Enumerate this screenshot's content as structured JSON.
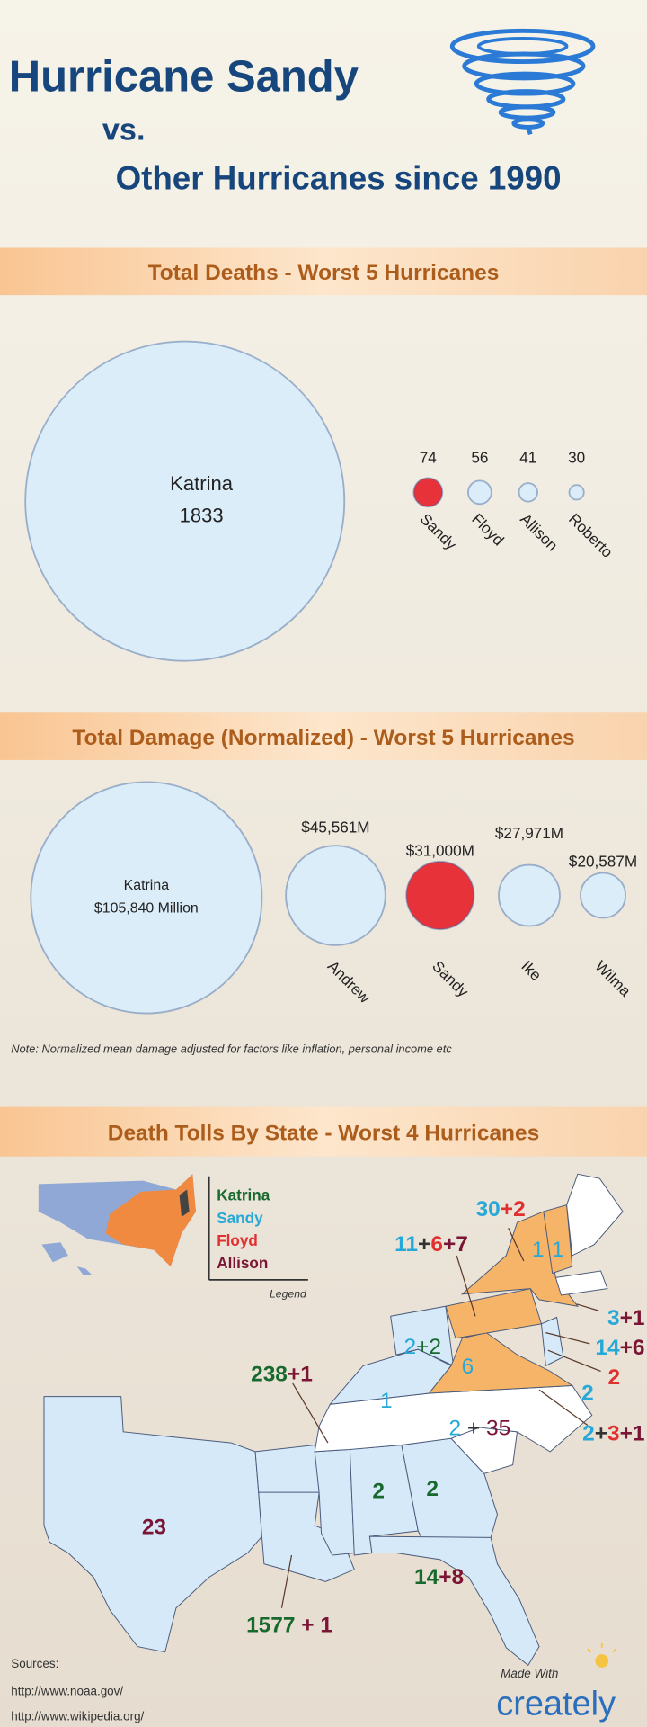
{
  "header": {
    "title": "Hurricane Sandy",
    "vs": "vs.",
    "subtitle": "Other Hurricanes since 1990"
  },
  "chart_data": [
    {
      "type": "bubble",
      "title": "Total Deaths - Worst 5 Hurricanes",
      "categories": [
        "Katrina",
        "Sandy",
        "Floyd",
        "Allison",
        "Roberto"
      ],
      "values": [
        1833,
        74,
        56,
        41,
        30
      ],
      "colors": [
        "#dcedfa",
        "#e8323a",
        "#dcedfa",
        "#dcedfa",
        "#dcedfa"
      ]
    },
    {
      "type": "bubble",
      "title": "Total Damage (Normalized) - Worst 5 Hurricanes",
      "categories": [
        "Katrina",
        "Andrew",
        "Sandy",
        "Ike",
        "Wilma"
      ],
      "values": [
        105840,
        45561,
        31000,
        27971,
        20587
      ],
      "value_labels": [
        "$105,840 Million",
        "$45,561M",
        "$31,000M",
        "$27,971M",
        "$20,587M"
      ],
      "colors": [
        "#dcedfa",
        "#dcedfa",
        "#e8323a",
        "#dcedfa",
        "#dcedfa"
      ],
      "note": "Note: Normalized mean damage adjusted for factors like inflation, personal income etc"
    }
  ],
  "map": {
    "title": "Death Tolls By State - Worst 4 Hurricanes",
    "legend": {
      "title": "Legend",
      "items": [
        {
          "name": "Katrina",
          "color": "#17692d"
        },
        {
          "name": "Sandy",
          "color": "#26a8d8"
        },
        {
          "name": "Floyd",
          "color": "#e0302f"
        },
        {
          "name": "Allison",
          "color": "#7a1535"
        }
      ]
    },
    "labels": [
      {
        "parts": [
          {
            "text": "30",
            "color": "#26a8d8"
          },
          {
            "text": "+2",
            "color": "#e0302f"
          }
        ]
      },
      {
        "parts": [
          {
            "text": "1",
            "color": "#26a8d8"
          }
        ]
      },
      {
        "parts": [
          {
            "text": "1",
            "color": "#26a8d8"
          }
        ]
      },
      {
        "parts": [
          {
            "text": "11",
            "color": "#26a8d8"
          },
          {
            "text": "+",
            "color": "#333333"
          },
          {
            "text": "6",
            "color": "#e0302f"
          },
          {
            "text": "+7",
            "color": "#7a1535"
          }
        ]
      },
      {
        "parts": [
          {
            "text": "3",
            "color": "#26a8d8"
          },
          {
            "text": "+1",
            "color": "#7a1535"
          }
        ]
      },
      {
        "parts": [
          {
            "text": "14",
            "color": "#26a8d8"
          },
          {
            "text": "+6",
            "color": "#7a1535"
          }
        ]
      },
      {
        "parts": [
          {
            "text": "2",
            "color": "#e0302f"
          }
        ]
      },
      {
        "parts": [
          {
            "text": "2",
            "color": "#26a8d8"
          }
        ]
      },
      {
        "parts": [
          {
            "text": "2",
            "color": "#26a8d8"
          },
          {
            "text": "+",
            "color": "#333333"
          },
          {
            "text": "3",
            "color": "#e0302f"
          },
          {
            "text": "+1",
            "color": "#7a1535"
          }
        ]
      },
      {
        "parts": [
          {
            "text": "2",
            "color": "#26a8d8"
          },
          {
            "text": "+2",
            "color": "#17692d"
          }
        ]
      },
      {
        "parts": [
          {
            "text": "6",
            "color": "#26a8d8"
          }
        ]
      },
      {
        "parts": [
          {
            "text": "1",
            "color": "#26a8d8"
          }
        ]
      },
      {
        "parts": [
          {
            "text": "2",
            "color": "#26a8d8"
          },
          {
            "text": " + ",
            "color": "#333333"
          },
          {
            "text": "35",
            "color": "#7a1535"
          }
        ]
      },
      {
        "parts": [
          {
            "text": "238",
            "color": "#17692d"
          },
          {
            "text": "+1",
            "color": "#7a1535"
          }
        ]
      },
      {
        "parts": [
          {
            "text": "2",
            "color": "#17692d"
          }
        ]
      },
      {
        "parts": [
          {
            "text": "2",
            "color": "#17692d"
          }
        ]
      },
      {
        "parts": [
          {
            "text": "23",
            "color": "#7a1535"
          }
        ]
      },
      {
        "parts": [
          {
            "text": "14",
            "color": "#17692d"
          },
          {
            "text": "+8",
            "color": "#7a1535"
          }
        ]
      },
      {
        "parts": [
          {
            "text": "1577",
            "color": "#17692d"
          },
          {
            "text": " + 1",
            "color": "#7a1535"
          }
        ]
      }
    ]
  },
  "sources": {
    "label": "Sources:",
    "links": [
      "http://www.noaa.gov/",
      "http://www.wikipedia.org/"
    ]
  },
  "footer": {
    "made_with": "Made With",
    "brand": "creately"
  }
}
